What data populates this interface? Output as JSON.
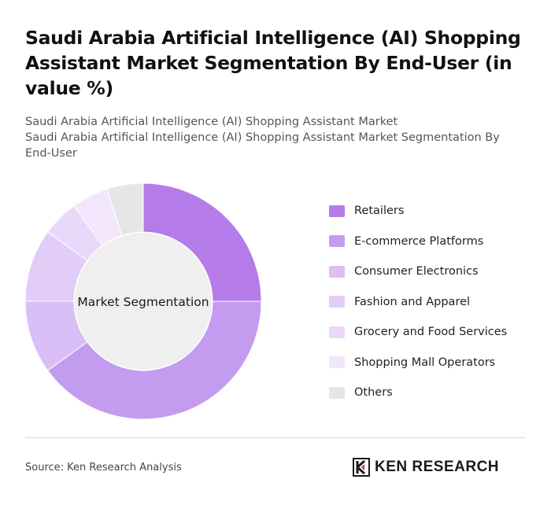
{
  "title": "Saudi Arabia Artificial Intelligence (AI) Shopping Assistant Market Segmentation By End-User (in value %)",
  "subtitle_line1": "Saudi Arabia Artificial Intelligence (AI) Shopping Assistant Market",
  "subtitle_line2": "Saudi Arabia Artificial Intelligence (AI) Shopping Assistant Market Segmentation By End-User",
  "chart_data": {
    "type": "pie",
    "center_label": "Market Segmentation",
    "categories": [
      "Retailers",
      "E-commerce Platforms",
      "Consumer Electronics",
      "Fashion and Apparel",
      "Grocery and Food Services",
      "Shopping Mall Operators",
      "Others"
    ],
    "values": [
      25,
      40,
      10,
      10,
      5,
      5,
      5
    ],
    "colors": [
      "#b57be8",
      "#c39cf0",
      "#d9bff6",
      "#e1cdf8",
      "#ead8fa",
      "#f1e6fc",
      "#e6e6e6"
    ],
    "legend_position": "right"
  },
  "footer": {
    "source": "Source: Ken Research Analysis",
    "brand": "KEN RESEARCH"
  },
  "logo_icon": "ken-research-logo-icon"
}
